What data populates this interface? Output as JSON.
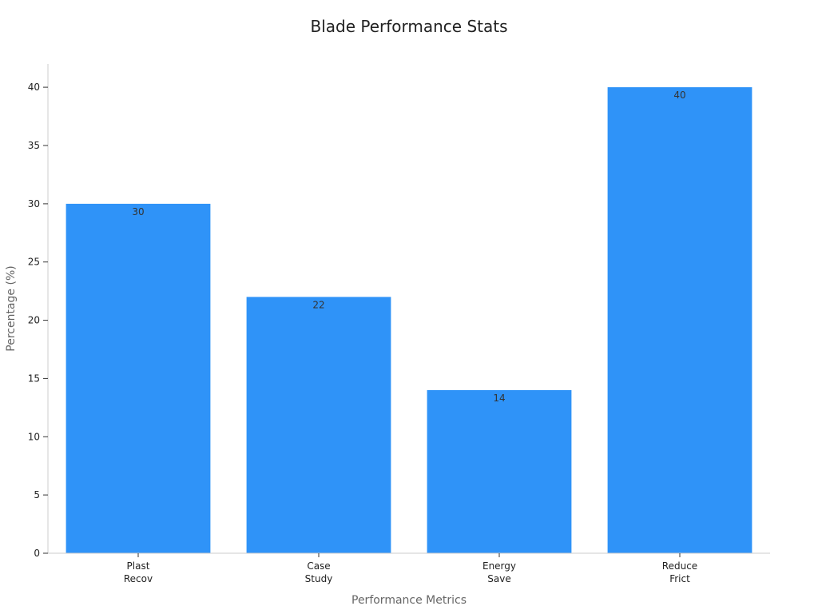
{
  "chart_data": {
    "type": "bar",
    "title": "Blade Performance Stats",
    "xlabel": "Performance Metrics",
    "ylabel": "Percentage (%)",
    "categories": [
      [
        "Plast",
        "Recov"
      ],
      [
        "Case",
        "Study"
      ],
      [
        "Energy",
        "Save"
      ],
      [
        "Reduce",
        "Frict"
      ]
    ],
    "values": [
      30,
      22,
      14,
      40
    ],
    "ylim": [
      0,
      42
    ],
    "yticks": [
      0,
      5,
      10,
      15,
      20,
      25,
      30,
      35,
      40
    ],
    "grid": false,
    "legend": "none",
    "colors": {
      "bar": "#2f93f8",
      "axis": "#cccccc",
      "tick": "#333333"
    }
  }
}
